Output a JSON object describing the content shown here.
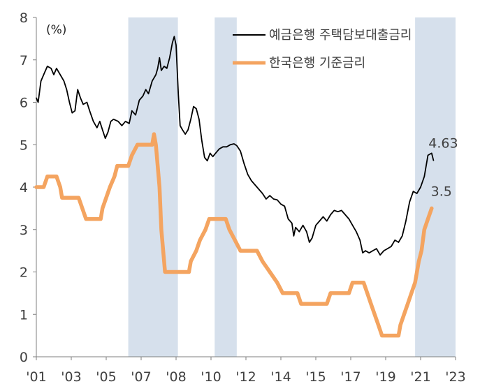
{
  "chart_data": {
    "type": "line",
    "title": "",
    "unit_label": "(%)",
    "xlabel": "",
    "ylabel": "",
    "xlim": [
      2001.0,
      2023.8
    ],
    "ylim": [
      0,
      8
    ],
    "y_ticks": [
      "0",
      "1",
      "2",
      "3",
      "4",
      "5",
      "6",
      "7",
      "8"
    ],
    "x_ticks": [
      {
        "label": "'01",
        "value": 2001
      },
      {
        "label": "'03",
        "value": 2003
      },
      {
        "label": "'05",
        "value": 2005
      },
      {
        "label": "'07",
        "value": 2007
      },
      {
        "label": "'08",
        "value": 2009
      },
      {
        "label": "'10",
        "value": 2011
      },
      {
        "label": "'12",
        "value": 2013
      },
      {
        "label": "'14",
        "value": 2015
      },
      {
        "label": "'15",
        "value": 2017
      },
      {
        "label": "'17",
        "value": 2019
      },
      {
        "label": "'19",
        "value": 2021
      },
      {
        "label": "'21",
        "value": 2023
      },
      {
        "label": "'23",
        "value": 2025
      }
    ],
    "shaded_periods": [
      {
        "start": 2006.0,
        "end": 2008.7
      },
      {
        "start": 2010.7,
        "end": 2011.9
      },
      {
        "start": 2021.6,
        "end": 2023.8
      }
    ],
    "shade_color": "#d6e0ec",
    "series": [
      {
        "name": "예금은행 주택담보대출금리",
        "color": "#000000",
        "end_label": "4.63",
        "points": [
          [
            2001.0,
            6.1
          ],
          [
            2001.1,
            6.0
          ],
          [
            2001.25,
            6.5
          ],
          [
            2001.45,
            6.7
          ],
          [
            2001.6,
            6.85
          ],
          [
            2001.8,
            6.8
          ],
          [
            2001.95,
            6.65
          ],
          [
            2002.1,
            6.8
          ],
          [
            2002.3,
            6.65
          ],
          [
            2002.5,
            6.5
          ],
          [
            2002.65,
            6.3
          ],
          [
            2002.8,
            6.0
          ],
          [
            2002.95,
            5.75
          ],
          [
            2003.1,
            5.8
          ],
          [
            2003.25,
            6.3
          ],
          [
            2003.4,
            6.1
          ],
          [
            2003.55,
            5.95
          ],
          [
            2003.75,
            6.0
          ],
          [
            2003.9,
            5.8
          ],
          [
            2004.1,
            5.55
          ],
          [
            2004.3,
            5.4
          ],
          [
            2004.45,
            5.55
          ],
          [
            2004.6,
            5.35
          ],
          [
            2004.75,
            5.15
          ],
          [
            2004.9,
            5.3
          ],
          [
            2005.05,
            5.55
          ],
          [
            2005.2,
            5.6
          ],
          [
            2005.45,
            5.55
          ],
          [
            2005.65,
            5.45
          ],
          [
            2005.85,
            5.55
          ],
          [
            2006.05,
            5.5
          ],
          [
            2006.2,
            5.8
          ],
          [
            2006.4,
            5.7
          ],
          [
            2006.6,
            6.05
          ],
          [
            2006.8,
            6.15
          ],
          [
            2006.95,
            6.3
          ],
          [
            2007.1,
            6.2
          ],
          [
            2007.3,
            6.5
          ],
          [
            2007.5,
            6.65
          ],
          [
            2007.6,
            6.8
          ],
          [
            2007.7,
            7.05
          ],
          [
            2007.8,
            6.75
          ],
          [
            2007.95,
            6.85
          ],
          [
            2008.1,
            6.8
          ],
          [
            2008.25,
            7.05
          ],
          [
            2008.4,
            7.4
          ],
          [
            2008.5,
            7.55
          ],
          [
            2008.6,
            7.35
          ],
          [
            2008.72,
            6.2
          ],
          [
            2008.82,
            5.45
          ],
          [
            2008.95,
            5.35
          ],
          [
            2009.1,
            5.25
          ],
          [
            2009.25,
            5.35
          ],
          [
            2009.4,
            5.6
          ],
          [
            2009.55,
            5.9
          ],
          [
            2009.7,
            5.85
          ],
          [
            2009.85,
            5.6
          ],
          [
            2010.0,
            5.1
          ],
          [
            2010.15,
            4.7
          ],
          [
            2010.3,
            4.62
          ],
          [
            2010.45,
            4.8
          ],
          [
            2010.6,
            4.72
          ],
          [
            2010.75,
            4.8
          ],
          [
            2010.95,
            4.9
          ],
          [
            2011.15,
            4.95
          ],
          [
            2011.35,
            4.95
          ],
          [
            2011.55,
            5.0
          ],
          [
            2011.75,
            5.02
          ],
          [
            2011.9,
            4.98
          ],
          [
            2012.1,
            4.85
          ],
          [
            2012.3,
            4.55
          ],
          [
            2012.5,
            4.3
          ],
          [
            2012.7,
            4.15
          ],
          [
            2012.9,
            4.05
          ],
          [
            2013.1,
            3.95
          ],
          [
            2013.3,
            3.85
          ],
          [
            2013.5,
            3.72
          ],
          [
            2013.7,
            3.8
          ],
          [
            2013.9,
            3.72
          ],
          [
            2014.1,
            3.7
          ],
          [
            2014.3,
            3.6
          ],
          [
            2014.5,
            3.55
          ],
          [
            2014.7,
            3.25
          ],
          [
            2014.9,
            3.15
          ],
          [
            2015.0,
            2.85
          ],
          [
            2015.1,
            3.05
          ],
          [
            2015.3,
            2.95
          ],
          [
            2015.5,
            3.1
          ],
          [
            2015.7,
            2.95
          ],
          [
            2015.85,
            2.7
          ],
          [
            2016.0,
            2.8
          ],
          [
            2016.2,
            3.1
          ],
          [
            2016.4,
            3.2
          ],
          [
            2016.6,
            3.3
          ],
          [
            2016.8,
            3.2
          ],
          [
            2017.0,
            3.35
          ],
          [
            2017.2,
            3.45
          ],
          [
            2017.4,
            3.42
          ],
          [
            2017.6,
            3.45
          ],
          [
            2017.8,
            3.35
          ],
          [
            2018.0,
            3.25
          ],
          [
            2018.2,
            3.1
          ],
          [
            2018.4,
            2.95
          ],
          [
            2018.6,
            2.75
          ],
          [
            2018.75,
            2.45
          ],
          [
            2018.9,
            2.5
          ],
          [
            2019.1,
            2.45
          ],
          [
            2019.3,
            2.5
          ],
          [
            2019.5,
            2.55
          ],
          [
            2019.7,
            2.4
          ],
          [
            2019.9,
            2.5
          ],
          [
            2020.1,
            2.55
          ],
          [
            2020.3,
            2.6
          ],
          [
            2020.5,
            2.75
          ],
          [
            2020.7,
            2.7
          ],
          [
            2020.9,
            2.85
          ],
          [
            2021.1,
            3.2
          ],
          [
            2021.3,
            3.65
          ],
          [
            2021.5,
            3.9
          ],
          [
            2021.7,
            3.85
          ],
          [
            2021.9,
            4.0
          ],
          [
            2022.1,
            4.25
          ],
          [
            2022.3,
            4.75
          ],
          [
            2022.5,
            4.8
          ],
          [
            2022.6,
            4.63
          ]
        ]
      },
      {
        "name": "한국은행 기준금리",
        "color": "#f4a460",
        "end_label": "3.5",
        "points": [
          [
            2001.0,
            4.0
          ],
          [
            2001.4,
            4.0
          ],
          [
            2001.6,
            4.25
          ],
          [
            2002.1,
            4.25
          ],
          [
            2002.3,
            4.0
          ],
          [
            2002.4,
            3.75
          ],
          [
            2003.3,
            3.75
          ],
          [
            2003.5,
            3.5
          ],
          [
            2003.7,
            3.25
          ],
          [
            2004.5,
            3.25
          ],
          [
            2004.6,
            3.5
          ],
          [
            2004.8,
            3.75
          ],
          [
            2005.0,
            4.0
          ],
          [
            2005.25,
            4.25
          ],
          [
            2005.4,
            4.5
          ],
          [
            2006.0,
            4.5
          ],
          [
            2006.2,
            4.75
          ],
          [
            2006.5,
            5.0
          ],
          [
            2007.3,
            5.0
          ],
          [
            2007.4,
            5.25
          ],
          [
            2007.5,
            5.0
          ],
          [
            2007.7,
            4.0
          ],
          [
            2007.8,
            3.0
          ],
          [
            2008.0,
            2.0
          ],
          [
            2009.3,
            2.0
          ],
          [
            2009.4,
            2.25
          ],
          [
            2009.7,
            2.5
          ],
          [
            2009.9,
            2.75
          ],
          [
            2010.2,
            3.0
          ],
          [
            2010.4,
            3.25
          ],
          [
            2011.3,
            3.25
          ],
          [
            2011.5,
            3.0
          ],
          [
            2011.8,
            2.75
          ],
          [
            2012.1,
            2.5
          ],
          [
            2013.0,
            2.5
          ],
          [
            2013.3,
            2.25
          ],
          [
            2013.7,
            2.0
          ],
          [
            2014.1,
            1.75
          ],
          [
            2014.4,
            1.5
          ],
          [
            2015.2,
            1.5
          ],
          [
            2015.4,
            1.25
          ],
          [
            2016.8,
            1.25
          ],
          [
            2017.0,
            1.5
          ],
          [
            2018.0,
            1.5
          ],
          [
            2018.2,
            1.75
          ],
          [
            2018.8,
            1.75
          ],
          [
            2019.0,
            1.5
          ],
          [
            2019.2,
            1.25
          ],
          [
            2019.6,
            0.75
          ],
          [
            2019.8,
            0.5
          ],
          [
            2020.7,
            0.5
          ],
          [
            2020.8,
            0.75
          ],
          [
            2021.0,
            1.0
          ],
          [
            2021.2,
            1.25
          ],
          [
            2021.4,
            1.5
          ],
          [
            2021.6,
            1.75
          ],
          [
            2021.8,
            2.25
          ],
          [
            2021.95,
            2.5
          ],
          [
            2022.1,
            3.0
          ],
          [
            2022.3,
            3.25
          ],
          [
            2022.5,
            3.5
          ]
        ]
      }
    ]
  }
}
